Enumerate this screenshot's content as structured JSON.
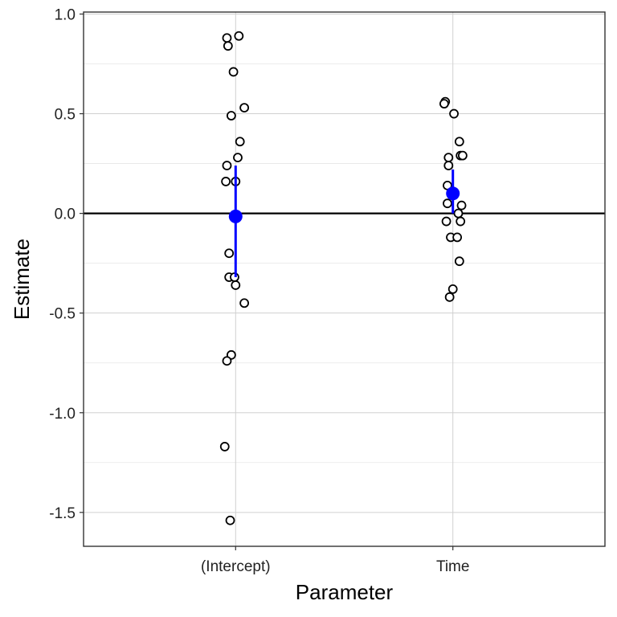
{
  "chart_data": {
    "type": "scatter",
    "xlabel": "Parameter",
    "ylabel": "Estimate",
    "categories": [
      "(Intercept)",
      "Time"
    ],
    "ylim": [
      -1.67,
      1.01
    ],
    "y_ticks": [
      "-1.5",
      "-1.0",
      "-0.5",
      "0.0",
      "0.5",
      "1.0"
    ],
    "y_tick_values": [
      -1.5,
      -1.0,
      -0.5,
      0.0,
      0.5,
      1.0
    ],
    "grid": true,
    "reference_line_y": 0,
    "points": [
      {
        "category": "(Intercept)",
        "values": [
          0.89,
          0.88,
          0.84,
          0.71,
          0.53,
          0.49,
          0.36,
          0.28,
          0.24,
          0.16,
          0.16,
          -0.2,
          -0.32,
          -0.32,
          -0.36,
          -0.45,
          -0.71,
          -0.74,
          -1.17,
          -1.54
        ],
        "jitter": [
          0.015,
          -0.04,
          -0.035,
          -0.01,
          0.04,
          -0.02,
          0.02,
          0.01,
          -0.04,
          -0.045,
          0.0,
          -0.03,
          -0.03,
          -0.005,
          0.0,
          0.04,
          -0.02,
          -0.04,
          -0.05,
          -0.025
        ]
      },
      {
        "category": "Time",
        "values": [
          0.56,
          0.55,
          0.5,
          0.36,
          0.29,
          0.29,
          0.28,
          0.24,
          0.14,
          0.05,
          0.04,
          0.0,
          -0.04,
          -0.04,
          -0.12,
          -0.12,
          -0.24,
          -0.38,
          -0.42
        ],
        "jitter": [
          -0.035,
          -0.04,
          0.005,
          0.03,
          0.035,
          0.045,
          -0.02,
          -0.02,
          -0.025,
          -0.025,
          0.04,
          0.025,
          0.035,
          -0.03,
          -0.01,
          0.02,
          0.03,
          0.0,
          -0.015
        ]
      }
    ],
    "summary": [
      {
        "category": "(Intercept)",
        "mean": -0.015,
        "lower": -0.32,
        "upper": 0.24
      },
      {
        "category": "Time",
        "mean": 0.1,
        "lower": 0.0,
        "upper": 0.22
      }
    ],
    "colors": {
      "summary": "#0000ff",
      "points_stroke": "#000000",
      "points_fill": "#ffffff",
      "grid": "#d0d0d0",
      "panel_border": "#333333",
      "reference_line": "#000000"
    }
  }
}
